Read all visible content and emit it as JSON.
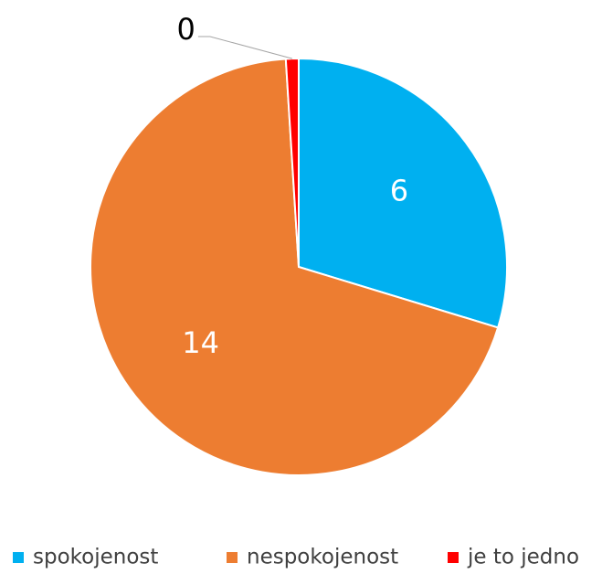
{
  "chart_data": {
    "type": "pie",
    "categories": [
      "spokojenost",
      "nespokojenost",
      "je to jedno"
    ],
    "values": [
      6,
      14,
      0.2
    ],
    "value_labels": [
      "6",
      "14",
      "0"
    ],
    "colors": [
      "#00b0f0",
      "#ed7d31",
      "#ff0000"
    ],
    "legend": "bottom"
  }
}
